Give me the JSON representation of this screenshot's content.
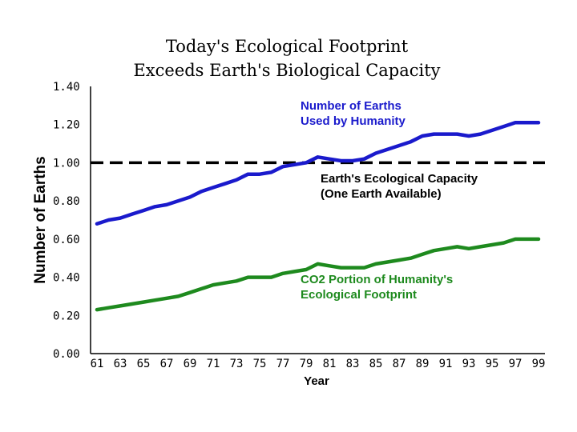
{
  "chart_data": {
    "type": "line",
    "title": [
      "Today's Ecological Footprint",
      "Exceeds Earth's Biological Capacity"
    ],
    "xlabel": "Year",
    "ylabel": "Number of Earths",
    "ylim": [
      0,
      1.4
    ],
    "xlim": [
      61,
      99
    ],
    "yticks": [
      "0.00",
      "0.20",
      "0.40",
      "0.60",
      "0.80",
      "1.00",
      "1.20",
      "1.40"
    ],
    "xticks": [
      "61",
      "63",
      "65",
      "67",
      "69",
      "71",
      "73",
      "75",
      "77",
      "79",
      "81",
      "83",
      "85",
      "87",
      "89",
      "91",
      "93",
      "95",
      "97",
      "99"
    ],
    "x": [
      61,
      62,
      63,
      64,
      65,
      66,
      67,
      68,
      69,
      70,
      71,
      72,
      73,
      74,
      75,
      76,
      77,
      78,
      79,
      80,
      81,
      82,
      83,
      84,
      85,
      86,
      87,
      88,
      89,
      90,
      91,
      92,
      93,
      94,
      95,
      96,
      97,
      98,
      99
    ],
    "series": [
      {
        "name": "Number of Earths Used by Humanity",
        "color": "#1a1acc",
        "values": [
          0.68,
          0.7,
          0.71,
          0.73,
          0.75,
          0.77,
          0.78,
          0.8,
          0.82,
          0.85,
          0.87,
          0.89,
          0.91,
          0.94,
          0.94,
          0.95,
          0.98,
          0.99,
          1.0,
          1.03,
          1.02,
          1.01,
          1.01,
          1.02,
          1.05,
          1.07,
          1.09,
          1.11,
          1.14,
          1.15,
          1.15,
          1.15,
          1.14,
          1.15,
          1.17,
          1.19,
          1.21,
          1.21,
          1.21
        ]
      },
      {
        "name": "CO2 Portion of Humanity's Ecological Footprint",
        "color": "#1e8a1e",
        "values": [
          0.23,
          0.24,
          0.25,
          0.26,
          0.27,
          0.28,
          0.29,
          0.3,
          0.32,
          0.34,
          0.36,
          0.37,
          0.38,
          0.4,
          0.4,
          0.4,
          0.42,
          0.43,
          0.44,
          0.47,
          0.46,
          0.45,
          0.45,
          0.45,
          0.47,
          0.48,
          0.49,
          0.5,
          0.52,
          0.54,
          0.55,
          0.56,
          0.55,
          0.56,
          0.57,
          0.58,
          0.6,
          0.6,
          0.6
        ]
      }
    ],
    "reference_line": {
      "name": "Earth's Ecological Capacity",
      "value": 1.0,
      "color": "#000000",
      "style": "dashed"
    },
    "annotations": [
      {
        "lines": [
          "Number of Earths",
          "Used by Humanity"
        ],
        "color": "#1a1acc"
      },
      {
        "lines": [
          "Earth's Ecological Capacity",
          "(One Earth Available)"
        ],
        "color": "#000000"
      },
      {
        "lines": [
          "CO2 Portion of Humanity's",
          "Ecological Footprint"
        ],
        "color": "#1e8a1e"
      }
    ]
  }
}
